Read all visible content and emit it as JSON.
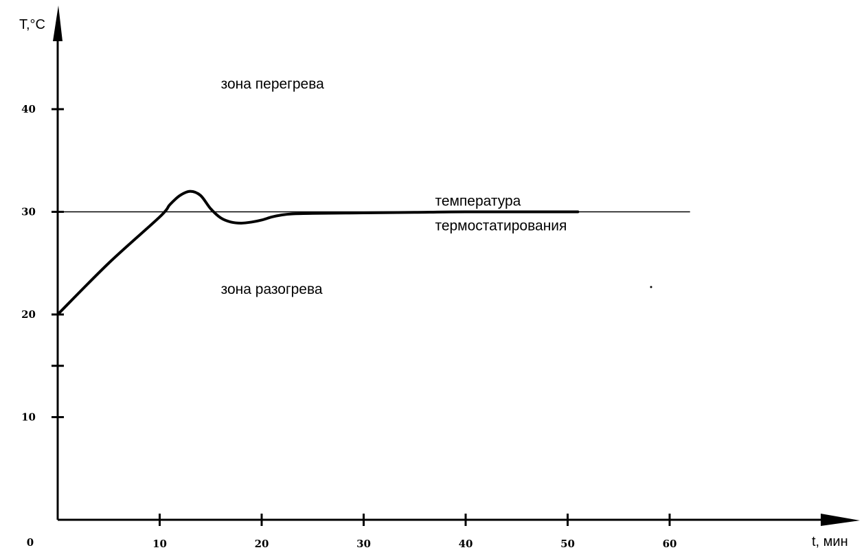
{
  "chart_data": {
    "type": "line",
    "ylabel": "T,°C",
    "xlabel": "t, мин",
    "origin_label": "0",
    "xlim": [
      0,
      70
    ],
    "ylim": [
      0,
      50
    ],
    "x_ticks": [
      10,
      20,
      30,
      40,
      50,
      60
    ],
    "x_tick_labels": [
      "10",
      "20",
      "30",
      "40",
      "50",
      "60"
    ],
    "y_ticks": [
      10,
      15,
      20,
      30,
      40
    ],
    "y_tick_labels": [
      "10",
      "",
      "20",
      "30",
      "40"
    ],
    "grid": false,
    "series": [
      {
        "x": [
          0,
          5,
          10,
          11,
          12,
          13,
          14,
          15,
          16,
          17,
          18,
          19,
          20,
          21,
          22,
          23,
          25,
          30,
          35,
          40,
          51
        ],
        "y": [
          20,
          25,
          29.5,
          30.7,
          31.6,
          32.0,
          31.6,
          30.3,
          29.4,
          29.0,
          28.9,
          29.0,
          29.2,
          29.5,
          29.7,
          29.8,
          29.85,
          29.9,
          29.95,
          30,
          30
        ]
      }
    ],
    "reference_line": {
      "y": 30,
      "x_start": 0,
      "x_end": 62
    },
    "annotations": [
      {
        "text": "зона перегрева",
        "x": 16,
        "y": 42
      },
      {
        "text": "температура",
        "x": 37,
        "y": 30.6
      },
      {
        "text": "термостатирования",
        "x": 37,
        "y": 28.2
      },
      {
        "text": "зона разогрева",
        "x": 16,
        "y": 22
      }
    ]
  }
}
